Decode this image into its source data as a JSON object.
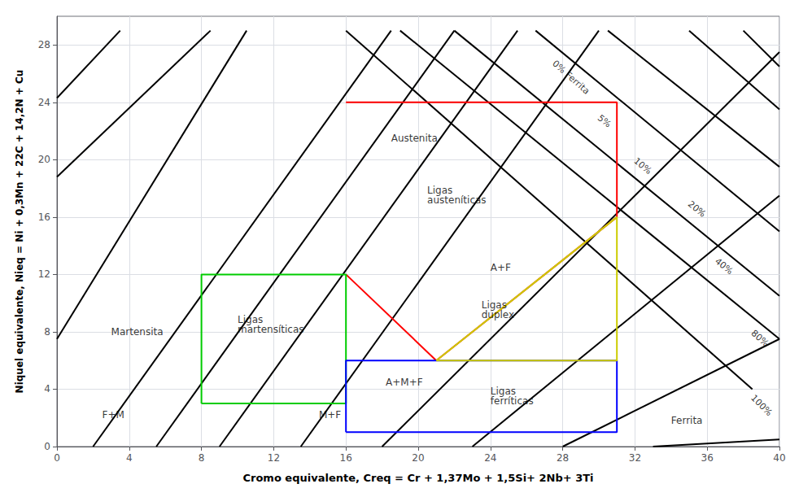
{
  "chart_data": {
    "type": "line",
    "xlabel": "Cromo equivalente, Creq = Cr + 1,37Mo + 1,5Si+ 2Nb+ 3Ti",
    "ylabel": "Niquel equivalente, Nieq = Ni + 0,3Mn + 22C + 14,2N + Cu",
    "xlim": [
      0,
      40
    ],
    "ylim": [
      0,
      30
    ],
    "xticks": [
      0,
      4,
      8,
      12,
      16,
      20,
      24,
      28,
      32,
      36,
      40
    ],
    "yticks": [
      0,
      4,
      8,
      12,
      16,
      20,
      24,
      28
    ],
    "grid": true,
    "series": [
      {
        "color": "#000000",
        "x": [
          0.0,
          10.5
        ],
        "values": [
          7.5,
          29.0
        ]
      },
      {
        "color": "#000000",
        "x": [
          0.0,
          8.5
        ],
        "values": [
          18.8,
          29.0
        ]
      },
      {
        "color": "#000000",
        "x": [
          0.0,
          3.5
        ],
        "values": [
          24.3,
          29.0
        ]
      },
      {
        "color": "#000000",
        "x": [
          2.0,
          18.5
        ],
        "values": [
          0.0,
          29.0
        ]
      },
      {
        "color": "#000000",
        "x": [
          5.5,
          22.0
        ],
        "values": [
          0.0,
          29.0
        ]
      },
      {
        "color": "#000000",
        "x": [
          9.0,
          25.5
        ],
        "values": [
          0.0,
          29.0
        ]
      },
      {
        "color": "#000000",
        "x": [
          13.5,
          30.0
        ],
        "values": [
          0.0,
          29.0
        ]
      },
      {
        "color": "#000000",
        "x": [
          18.0,
          40.0
        ],
        "values": [
          0.0,
          27.5
        ]
      },
      {
        "color": "#000000",
        "x": [
          23.0,
          40.0
        ],
        "values": [
          0.0,
          17.5
        ]
      },
      {
        "color": "#000000",
        "x": [
          28.0,
          40.0
        ],
        "values": [
          0.0,
          7.5
        ]
      },
      {
        "color": "#000000",
        "x": [
          33.0,
          40.0
        ],
        "values": [
          0.0,
          0.5
        ]
      },
      {
        "color": "#000000",
        "x": [
          16.0,
          38.5
        ],
        "values": [
          29.0,
          4.0
        ],
        "label": {
          "text": "0% Ferrita",
          "x": 27.5,
          "y": 26.8
        }
      },
      {
        "color": "#000000",
        "x": [
          19.0,
          40.0
        ],
        "values": [
          29.0,
          7.5
        ],
        "label": {
          "text": "5%",
          "x": 30.0,
          "y": 23.0
        }
      },
      {
        "color": "#000000",
        "x": [
          22.0,
          40.0
        ],
        "values": [
          29.0,
          10.5
        ],
        "label": {
          "text": "10%",
          "x": 32.0,
          "y": 20.0
        }
      },
      {
        "color": "#000000",
        "x": [
          26.5,
          40.0
        ],
        "values": [
          29.0,
          15.0
        ],
        "label": {
          "text": "20%",
          "x": 35.0,
          "y": 17.0
        }
      },
      {
        "color": "#000000",
        "x": [
          30.5,
          40.0
        ],
        "values": [
          29.0,
          19.5
        ],
        "label": {
          "text": "40%",
          "x": 36.5,
          "y": 13.0
        }
      },
      {
        "color": "#000000",
        "x": [
          35.0,
          40.0
        ],
        "values": [
          29.0,
          23.5
        ],
        "label": {
          "text": "80%",
          "x": 38.5,
          "y": 8.0
        }
      },
      {
        "color": "#000000",
        "x": [
          38.0,
          40.0
        ],
        "values": [
          29.0,
          26.5
        ],
        "label": {
          "text": "100%",
          "x": 38.5,
          "y": 3.5
        }
      },
      {
        "color": "#ff0000",
        "x": [
          16.0,
          31.0,
          31.0,
          21.0,
          16.0
        ],
        "values": [
          24.0,
          24.0,
          16.0,
          6.0,
          12.0
        ]
      },
      {
        "color": "#00cc00",
        "x": [
          8,
          16,
          16,
          8,
          8
        ],
        "values": [
          3,
          3,
          12,
          12,
          3
        ]
      },
      {
        "color": "#0000ff",
        "x": [
          16,
          31,
          31,
          16,
          16
        ],
        "values": [
          1,
          1,
          6,
          6,
          1
        ]
      },
      {
        "color": "#cccc00",
        "x": [
          21.0,
          31.0,
          31.0,
          21.0,
          21.0
        ],
        "values": [
          6.0,
          16.0,
          6.0,
          6.0,
          6.0
        ]
      }
    ],
    "annotations": [
      {
        "text": "Austenita",
        "x": 18.5,
        "y": 21.5
      },
      {
        "text": "Martensita",
        "x": 3.0,
        "y": 8.0
      },
      {
        "text": "F+M",
        "x": 2.5,
        "y": 2.2
      },
      {
        "text": "M+F",
        "x": 14.5,
        "y": 2.2
      },
      {
        "text": "A+M+F",
        "x": 18.2,
        "y": 4.5
      },
      {
        "text": "A+F",
        "x": 24.0,
        "y": 12.5
      },
      {
        "text": "Ferrita",
        "x": 34.0,
        "y": 1.8
      },
      {
        "text": "Ligas\nausteníticas",
        "x": 20.5,
        "y": 17.5
      },
      {
        "text": "Ligas\nmartensíticas",
        "x": 10.0,
        "y": 8.5
      },
      {
        "text": "Ligas\nduplex",
        "x": 23.5,
        "y": 9.5
      },
      {
        "text": "Ligas\nferríticas",
        "x": 24.0,
        "y": 3.5
      }
    ]
  }
}
